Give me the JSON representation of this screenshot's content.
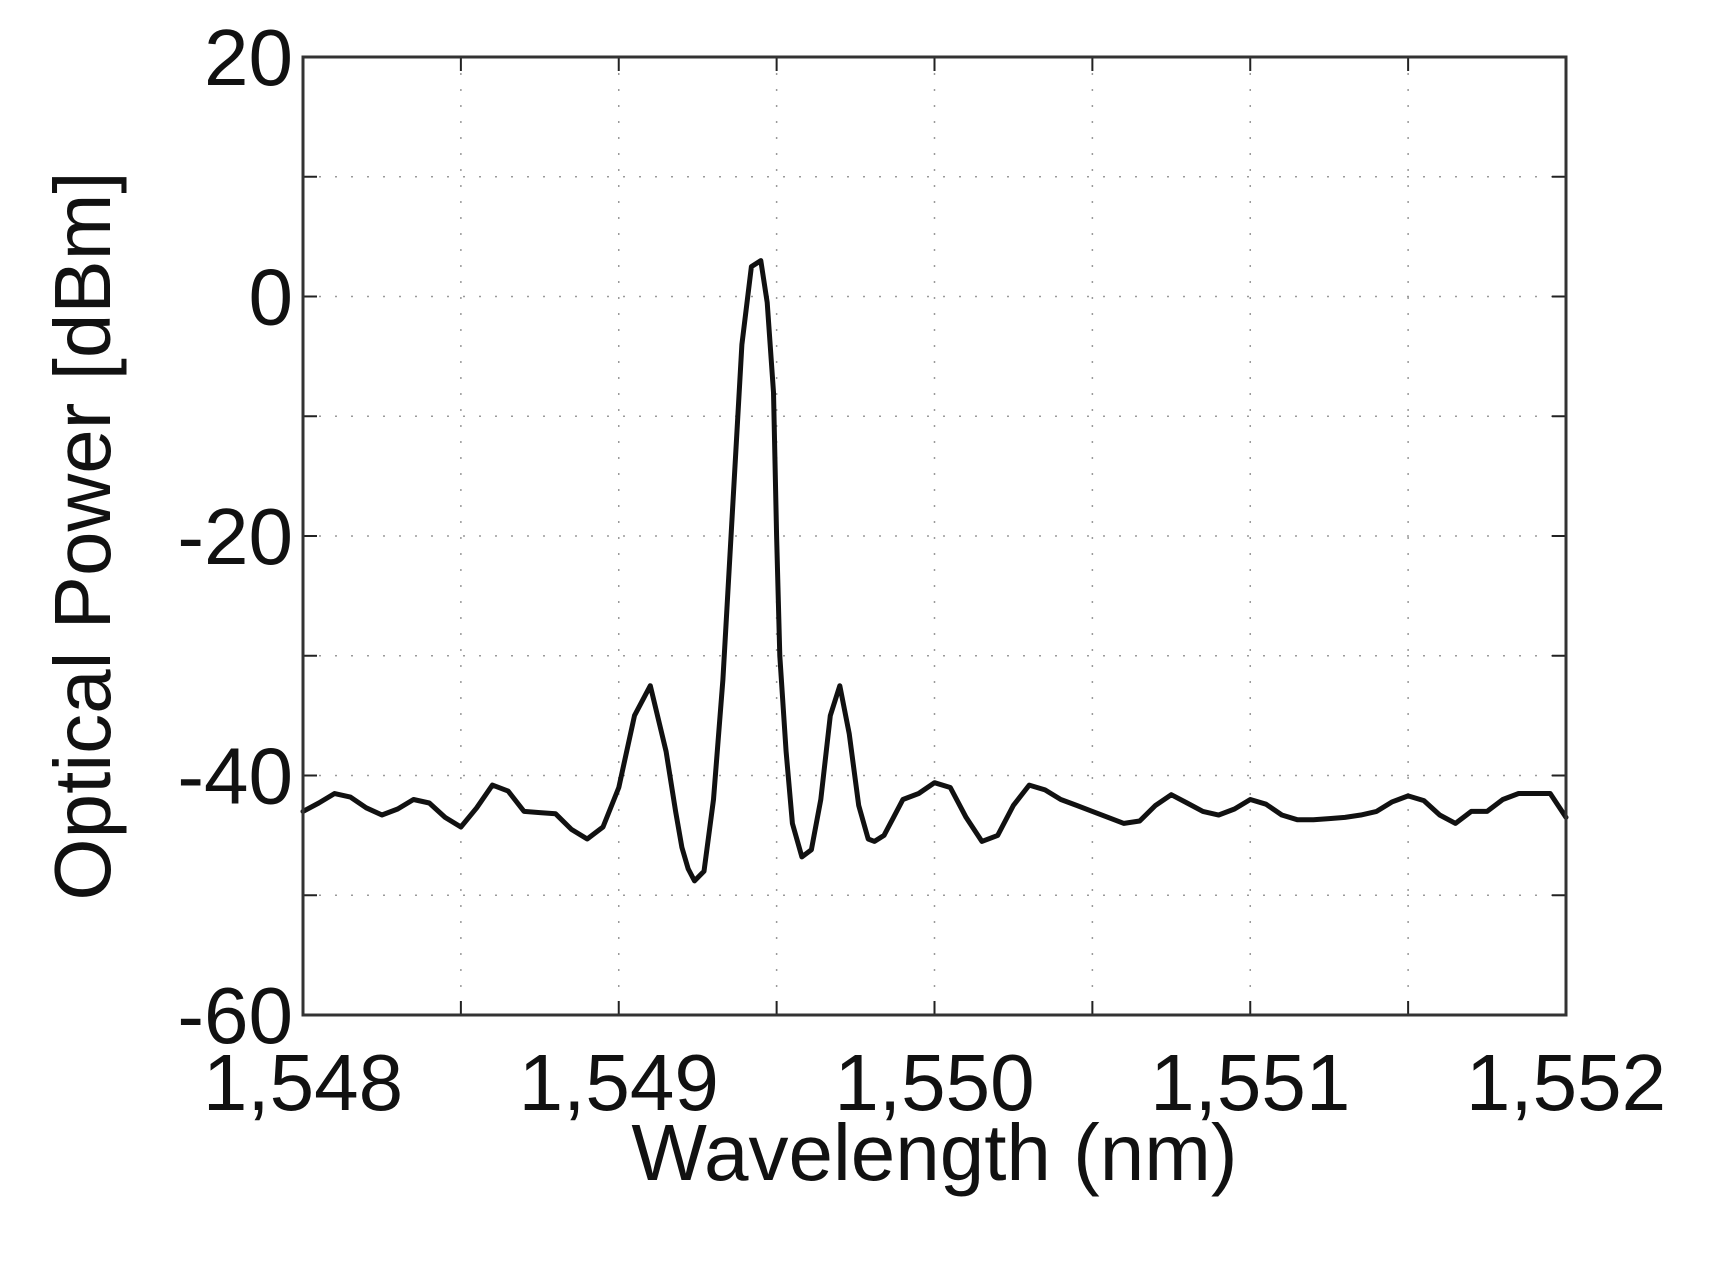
{
  "chart_data": {
    "type": "line",
    "title": "",
    "xlabel": "Wavelength (nm)",
    "ylabel": "Optical Power [dBm]",
    "xlim": [
      1548,
      1552
    ],
    "ylim": [
      -60,
      20
    ],
    "xticks": [
      {
        "value": 1548,
        "label": "1,548"
      },
      {
        "value": 1549,
        "label": "1,549"
      },
      {
        "value": 1550,
        "label": "1,550"
      },
      {
        "value": 1551,
        "label": "1,551"
      },
      {
        "value": 1552,
        "label": "1,552"
      }
    ],
    "yticks": [
      {
        "value": -60,
        "label": "-60"
      },
      {
        "value": -40,
        "label": "-40"
      },
      {
        "value": -20,
        "label": "-20"
      },
      {
        "value": 0,
        "label": "0"
      },
      {
        "value": 20,
        "label": "20"
      }
    ],
    "minor_xticks": [
      1548.5,
      1549.5,
      1550.5,
      1551.5
    ],
    "minor_yticks": [
      -50,
      -30,
      -10,
      10
    ],
    "grid": true,
    "legend": "none",
    "line_color": "#111111",
    "series": [
      {
        "x": [
          1548.0,
          1548.05,
          1548.1,
          1548.15,
          1548.2,
          1548.25,
          1548.3,
          1548.35,
          1548.4,
          1548.45,
          1548.5,
          1548.55,
          1548.6,
          1548.65,
          1548.7,
          1548.75,
          1548.8,
          1548.85,
          1548.9,
          1548.95,
          1549.0,
          1549.05,
          1549.1,
          1549.15,
          1549.18,
          1549.2,
          1549.22,
          1549.24,
          1549.27,
          1549.3,
          1549.33,
          1549.36,
          1549.39,
          1549.42,
          1549.45,
          1549.47,
          1549.49,
          1549.5,
          1549.51,
          1549.53,
          1549.55,
          1549.58,
          1549.61,
          1549.64,
          1549.67,
          1549.7,
          1549.73,
          1549.76,
          1549.79,
          1549.81,
          1549.84,
          1549.87,
          1549.9,
          1549.95,
          1550.0,
          1550.05,
          1550.1,
          1550.15,
          1550.2,
          1550.25,
          1550.3,
          1550.35,
          1550.4,
          1550.45,
          1550.5,
          1550.55,
          1550.6,
          1550.65,
          1550.7,
          1550.75,
          1550.8,
          1550.85,
          1550.9,
          1550.95,
          1551.0,
          1551.05,
          1551.1,
          1551.15,
          1551.2,
          1551.25,
          1551.3,
          1551.35,
          1551.4,
          1551.45,
          1551.5,
          1551.55,
          1551.6,
          1551.65,
          1551.7,
          1551.75,
          1551.8,
          1551.85,
          1551.9,
          1551.95,
          1552.0
        ],
        "y": [
          -43.0,
          -42.3,
          -41.5,
          -41.8,
          -42.7,
          -43.3,
          -42.8,
          -42.0,
          -42.3,
          -43.5,
          -44.3,
          -42.7,
          -40.8,
          -41.3,
          -43.0,
          -43.1,
          -43.2,
          -44.5,
          -45.3,
          -44.3,
          -41.0,
          -35.0,
          -32.5,
          -38.0,
          -43.0,
          -46.0,
          -47.8,
          -48.8,
          -48.0,
          -42.0,
          -32.0,
          -18.0,
          -4.0,
          2.5,
          3.0,
          -0.5,
          -8.0,
          -20.0,
          -30.0,
          -38.0,
          -44.0,
          -46.8,
          -46.2,
          -42.0,
          -35.0,
          -32.5,
          -36.5,
          -42.5,
          -45.3,
          -45.5,
          -45.0,
          -43.5,
          -42.0,
          -41.5,
          -40.6,
          -41.0,
          -43.5,
          -45.5,
          -45.0,
          -42.5,
          -40.8,
          -41.2,
          -42.0,
          -42.5,
          -43.0,
          -43.5,
          -44.0,
          -43.8,
          -42.5,
          -41.6,
          -42.3,
          -43.0,
          -43.3,
          -42.8,
          -42.0,
          -42.4,
          -43.3,
          -43.7,
          -43.7,
          -43.6,
          -43.5,
          -43.3,
          -43.0,
          -42.2,
          -41.7,
          -42.1,
          -43.3,
          -44.0,
          -43.0,
          -43.0,
          -42.0,
          -41.5,
          -41.5,
          -41.5,
          -43.5
        ]
      }
    ]
  }
}
